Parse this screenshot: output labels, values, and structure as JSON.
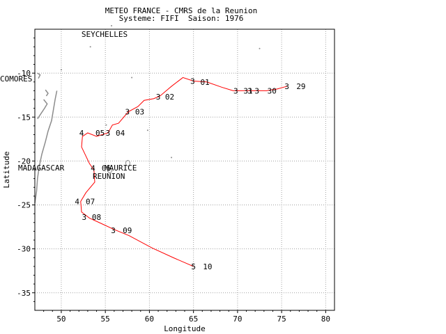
{
  "header": {
    "title": "METEO FRANCE - CMRS de la Reunion",
    "subtitle": "Systeme: FIFI  Saison: 1976"
  },
  "map": {
    "axes": {
      "xlabel": "Longitude",
      "ylabel": "Latitude",
      "xlim": [
        47,
        81
      ],
      "ylim": [
        -37,
        -5
      ],
      "xticks": [
        50,
        55,
        60,
        65,
        70,
        75,
        80
      ],
      "yticks": [
        -10,
        -15,
        -20,
        -25,
        -30,
        -35
      ],
      "grid": true
    },
    "place_labels": [
      "SEYCHELLES",
      "COMORES",
      "MADAGASCAR",
      "MAURICE",
      "REUNION"
    ],
    "colors": {
      "track": "#ff0000",
      "coast": "#8c8c8c",
      "grid": "#a0a0a0",
      "text": "#000000"
    }
  },
  "chart_data": {
    "type": "line",
    "title": "METEO FRANCE - CMRS de la Reunion",
    "subtitle": "Systeme: FIFI  Saison: 1976",
    "xlabel": "Longitude",
    "ylabel": "Latitude",
    "xlim": [
      47,
      81
    ],
    "ylim": [
      -37,
      -5
    ],
    "grid": true,
    "track": [
      {
        "lon": 75.6,
        "lat": -11.5
      },
      {
        "lon": 74.5,
        "lat": -11.8
      },
      {
        "lon": 73.3,
        "lat": -12.0
      },
      {
        "lon": 71.5,
        "lat": -12.0
      },
      {
        "lon": 69.5,
        "lat": -12.0
      },
      {
        "lon": 68.2,
        "lat": -11.6
      },
      {
        "lon": 66.5,
        "lat": -11.0
      },
      {
        "lon": 65.0,
        "lat": -10.9
      },
      {
        "lon": 63.8,
        "lat": -10.5
      },
      {
        "lon": 62.5,
        "lat": -11.5
      },
      {
        "lon": 61.2,
        "lat": -12.6
      },
      {
        "lon": 60.5,
        "lat": -12.9
      },
      {
        "lon": 59.4,
        "lat": -13.1
      },
      {
        "lon": 58.7,
        "lat": -13.8
      },
      {
        "lon": 57.6,
        "lat": -14.4
      },
      {
        "lon": 56.5,
        "lat": -15.7
      },
      {
        "lon": 55.8,
        "lat": -15.9
      },
      {
        "lon": 55.3,
        "lat": -16.8
      },
      {
        "lon": 54.0,
        "lat": -17.2
      },
      {
        "lon": 53.0,
        "lat": -16.8
      },
      {
        "lon": 52.4,
        "lat": -17.2
      },
      {
        "lon": 52.3,
        "lat": -18.4
      },
      {
        "lon": 53.2,
        "lat": -20.3
      },
      {
        "lon": 53.7,
        "lat": -21.0
      },
      {
        "lon": 53.8,
        "lat": -22.4
      },
      {
        "lon": 52.8,
        "lat": -23.6
      },
      {
        "lon": 52.2,
        "lat": -24.6
      },
      {
        "lon": 52.3,
        "lat": -25.8
      },
      {
        "lon": 53.2,
        "lat": -26.5
      },
      {
        "lon": 54.5,
        "lat": -27.1
      },
      {
        "lon": 56.0,
        "lat": -27.8
      },
      {
        "lon": 57.7,
        "lat": -28.5
      },
      {
        "lon": 60.3,
        "lat": -29.9
      },
      {
        "lon": 62.7,
        "lat": -31.0
      },
      {
        "lon": 65.0,
        "lat": -32.0
      }
    ],
    "intensity_marks": [
      {
        "lon": 75.6,
        "lat": -11.5,
        "label": "3"
      },
      {
        "lon": 69.8,
        "lat": -12.0,
        "label": "3"
      },
      {
        "lon": 71.4,
        "lat": -12.0,
        "label": "3"
      },
      {
        "lon": 72.2,
        "lat": -12.0,
        "label": "3"
      },
      {
        "lon": 64.9,
        "lat": -10.9,
        "label": "3"
      },
      {
        "lon": 61.0,
        "lat": -12.7,
        "label": "3"
      },
      {
        "lon": 57.5,
        "lat": -14.4,
        "label": "3"
      },
      {
        "lon": 55.3,
        "lat": -16.8,
        "label": "3"
      },
      {
        "lon": 52.3,
        "lat": -16.8,
        "label": "4"
      },
      {
        "lon": 53.6,
        "lat": -20.8,
        "label": "4"
      },
      {
        "lon": 51.8,
        "lat": -24.6,
        "label": "4"
      },
      {
        "lon": 52.6,
        "lat": -26.4,
        "label": "3"
      },
      {
        "lon": 55.9,
        "lat": -27.9,
        "label": "3"
      },
      {
        "lon": 65.0,
        "lat": -32.0,
        "label": "5"
      }
    ],
    "date_labels": [
      {
        "lon": 77.2,
        "lat": -11.5,
        "label": "29"
      },
      {
        "lon": 73.9,
        "lat": -12.0,
        "label": "30"
      },
      {
        "lon": 71.2,
        "lat": -12.0,
        "label": "31"
      },
      {
        "lon": 66.3,
        "lat": -11.0,
        "label": "01"
      },
      {
        "lon": 62.3,
        "lat": -12.7,
        "label": "02"
      },
      {
        "lon": 58.9,
        "lat": -14.4,
        "label": "03"
      },
      {
        "lon": 54.4,
        "lat": -16.8,
        "label": "05"
      },
      {
        "lon": 56.7,
        "lat": -16.8,
        "label": "04"
      },
      {
        "lon": 55.1,
        "lat": -20.8,
        "label": "06"
      },
      {
        "lon": 53.3,
        "lat": -24.6,
        "label": "07"
      },
      {
        "lon": 54.0,
        "lat": -26.4,
        "label": "08"
      },
      {
        "lon": 57.5,
        "lat": -27.9,
        "label": "09"
      },
      {
        "lon": 66.6,
        "lat": -32.0,
        "label": "10"
      }
    ]
  }
}
